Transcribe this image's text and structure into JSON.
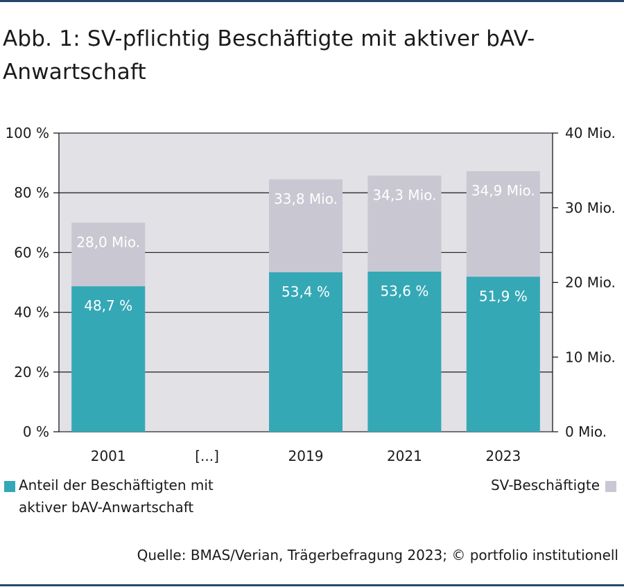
{
  "title": "Abb. 1: SV-pflichtig Beschäftigte mit aktiver bAV-Anwartschaft",
  "source": "Quelle: BMAS/Verian, Trägerbefragung 2023; © portfolio institutionell",
  "colors": {
    "rule": "#24466b",
    "plot_bg": "#e2e1e6",
    "share": "#35a8b6",
    "employees": "#c9c8d2",
    "gridline": "#2a2a2a",
    "label_text": "#ffffff"
  },
  "legend": {
    "share_label_line1": "Anteil der Beschäftigten mit",
    "share_label_line2": "aktiver bAV-Anwartschaft",
    "employees_label": "SV-Beschäftigte"
  },
  "chart_data": {
    "type": "bar",
    "categories": [
      "2001",
      "[...]",
      "2019",
      "2021",
      "2023"
    ],
    "series": [
      {
        "name": "Anteil der Beschäftigten mit aktiver bAV-Anwartschaft",
        "axis": "left",
        "unit": "%",
        "values": [
          48.7,
          null,
          53.4,
          53.6,
          51.9
        ],
        "labels": [
          "48,7 %",
          "",
          "53,4 %",
          "53,6 %",
          "51,9 %"
        ]
      },
      {
        "name": "SV-Beschäftigte",
        "axis": "right",
        "unit": "Mio.",
        "values": [
          28.0,
          null,
          33.8,
          34.3,
          34.9
        ],
        "labels": [
          "28,0 Mio.",
          "",
          "33,8 Mio.",
          "34,3 Mio.",
          "34,9 Mio."
        ]
      }
    ],
    "y_left": {
      "range": [
        0,
        100
      ],
      "ticks": [
        0,
        20,
        40,
        60,
        80,
        100
      ],
      "tick_labels": [
        "0 %",
        "20 %",
        "40 %",
        "60 %",
        "80 %",
        "100 %"
      ]
    },
    "y_right": {
      "range": [
        0,
        40
      ],
      "ticks": [
        0,
        10,
        20,
        30,
        40
      ],
      "tick_labels": [
        "0 Mio.",
        "10 Mio.",
        "20 Mio.",
        "30 Mio.",
        "40 Mio."
      ]
    },
    "grid": true,
    "legend_placement": "bottom"
  }
}
